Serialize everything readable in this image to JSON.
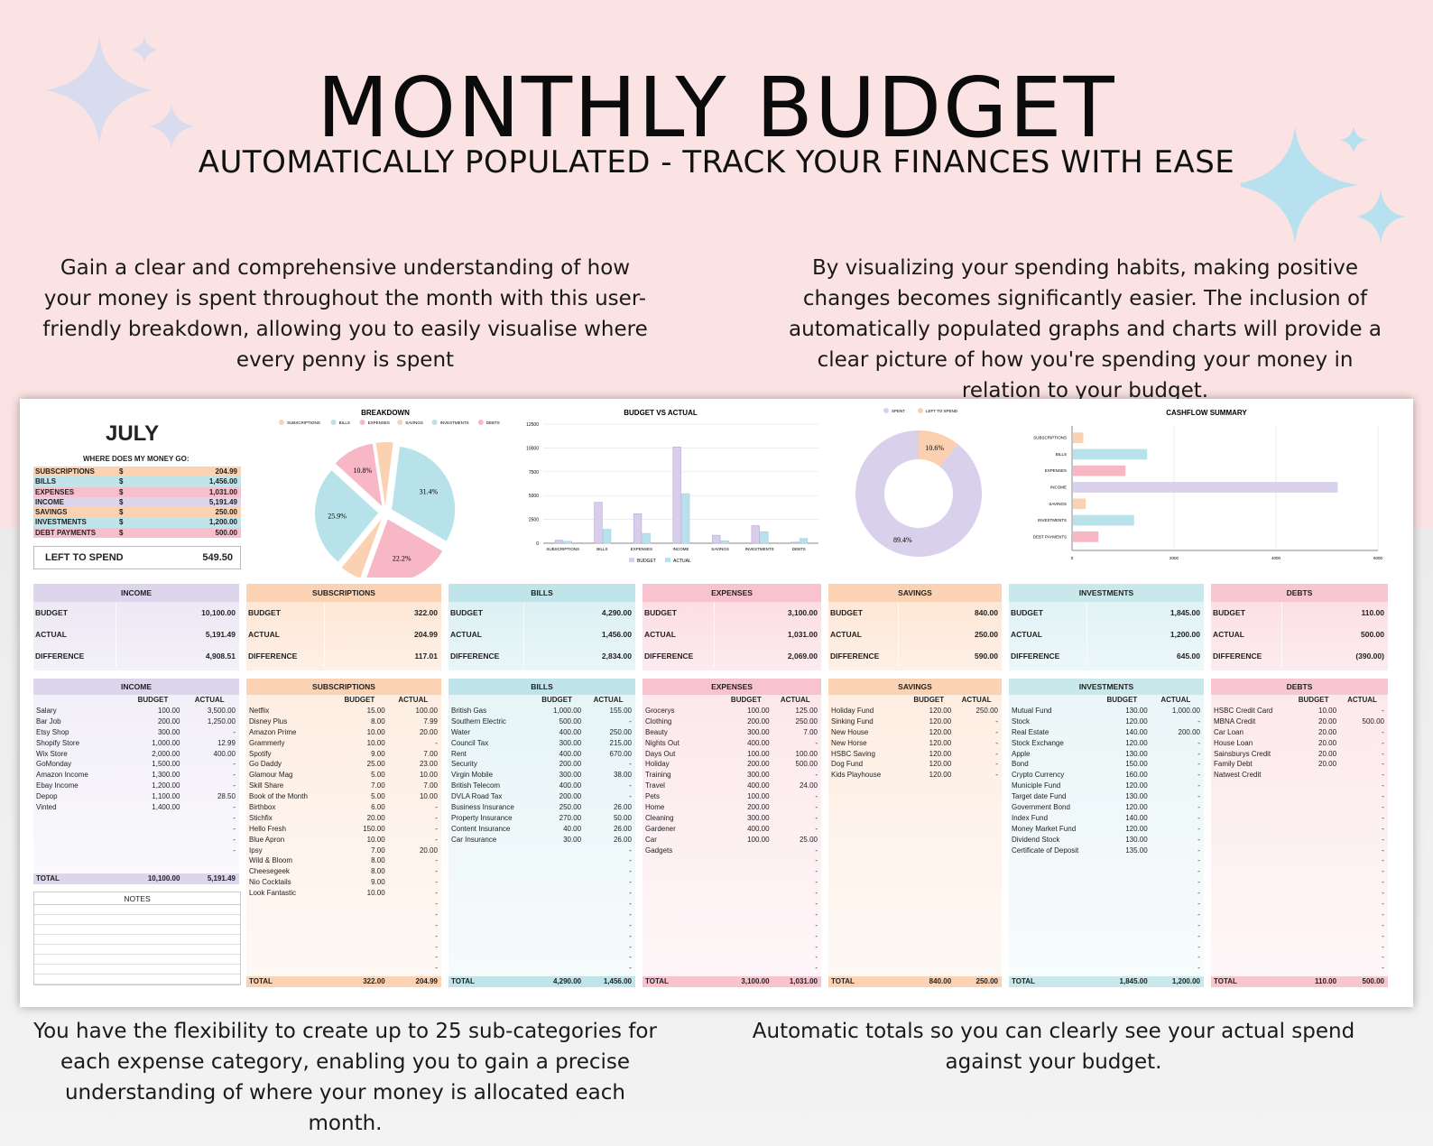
{
  "header": {
    "title": "MONTHLY BUDGET",
    "subtitle": "AUTOMATICALLY POPULATED - TRACK YOUR FINANCES WITH EASE"
  },
  "blurbs": {
    "top_left": "Gain a clear and comprehensive understanding of how your money is spent throughout the month with this user-friendly breakdown, allowing you to easily visualise where every penny is spent",
    "top_right": "By visualizing your spending habits, making positive changes becomes significantly easier. The inclusion of automatically populated graphs and charts will provide a clear picture of how you're spending your money in relation to your budget.",
    "bottom_left": "You have the flexibility to create up to 25 sub-categories for each expense category, enabling you to gain a precise understanding of where your money is allocated each month.",
    "bottom_right": "Automatic totals so you can clearly see your actual spend against your budget."
  },
  "colors": {
    "income": "#ddd5ec",
    "subscriptions": "#fbd3b4",
    "bills": "#bfe4ea",
    "expenses": "#f8c3ce",
    "savings": "#fbd3b4",
    "investments": "#c8e8ec",
    "debts": "#f8c6cf",
    "pie_subscriptions": "#fbd2b1",
    "pie_bills": "#b8e2ea",
    "pie_expenses": "#f7b7c5",
    "pie_savings": "#fbd2b1",
    "pie_investments": "#b8e2ea",
    "pie_debts": "#f7b7c5",
    "budget_bar": "#d8cdea",
    "actual_bar": "#b9e1ec",
    "spent": "#d9d1ec",
    "left_to_spend": "#fbd0b0"
  },
  "sheet": {
    "month": "JULY",
    "where_label": "WHERE DOES MY MONEY GO:",
    "summary": [
      {
        "label": "SUBSCRIPTIONS",
        "currency": "$",
        "value": "204.99",
        "color": "#fcd3b2"
      },
      {
        "label": "BILLS",
        "currency": "$",
        "value": "1,456.00",
        "color": "#bfe4ea"
      },
      {
        "label": "EXPENSES",
        "currency": "$",
        "value": "1,031.00",
        "color": "#f7bfcb"
      },
      {
        "label": "INCOME",
        "currency": "$",
        "value": "5,191.49",
        "color": "#ddd5ec"
      },
      {
        "label": "SAVINGS",
        "currency": "$",
        "value": "250.00",
        "color": "#fcd3b2"
      },
      {
        "label": "INVESTMENTS",
        "currency": "$",
        "value": "1,200.00",
        "color": "#bfe4ea"
      },
      {
        "label": "DEBT PAYMENTS",
        "currency": "$",
        "value": "500.00",
        "color": "#f7bfcb"
      }
    ],
    "left_to_spend_label": "LEFT TO SPEND",
    "left_to_spend_value": "549.50"
  },
  "chart_data": [
    {
      "type": "pie",
      "title": "BREAKDOWN",
      "legend": [
        "SUBSCRIPTIONS",
        "BILLS",
        "EXPENSES",
        "SAVINGS",
        "INVESTMENTS",
        "DEBTS"
      ],
      "labels": [
        "SUBSCRIPTIONS",
        "BILLS",
        "EXPENSES",
        "SAVINGS",
        "INVESTMENTS",
        "DEBTS"
      ],
      "values": [
        4.4,
        31.4,
        22.2,
        5.4,
        25.9,
        10.8
      ],
      "data_labels": [
        "",
        "31.4%",
        "22.2%",
        "",
        "25.9%",
        "10.8%"
      ]
    },
    {
      "type": "bar",
      "title": "BUDGET VS ACTUAL",
      "categories": [
        "SUBSCRIPTIONS",
        "BILLS",
        "EXPENSES",
        "INCOME",
        "SAVINGS",
        "INVESTMENTS",
        "DEBTS"
      ],
      "series": [
        {
          "name": "BUDGET",
          "values": [
            322,
            4290,
            3100,
            10100,
            840,
            1845,
            110
          ]
        },
        {
          "name": "ACTUAL",
          "values": [
            204.99,
            1456,
            1031,
            5191.49,
            250,
            1200,
            500
          ]
        }
      ],
      "yticks": [
        "0",
        "2500",
        "5000",
        "7500",
        "10000",
        "12500"
      ],
      "ylim": [
        0,
        12500
      ]
    },
    {
      "type": "pie",
      "subtype": "donut",
      "legend": [
        "SPENT",
        "LEFT TO SPEND"
      ],
      "labels": [
        "SPENT",
        "LEFT TO SPEND"
      ],
      "values": [
        89.4,
        10.6
      ],
      "data_labels": [
        "89.4%",
        "10.6%"
      ]
    },
    {
      "type": "bar",
      "orientation": "horizontal",
      "title": "CASHFLOW SUMMARY",
      "categories": [
        "SUBSCRIPTIONS",
        "BILLS",
        "EXPENSES",
        "INCOME",
        "SAVINGS",
        "INVESTMENTS",
        "DEBT PAYMENTS"
      ],
      "values": [
        204.99,
        1456,
        1031,
        5191.49,
        250,
        1200,
        500
      ],
      "xticks": [
        "0",
        "2000",
        "4000",
        "6000"
      ],
      "xlim": [
        0,
        6000
      ]
    }
  ],
  "summary_cards": [
    {
      "title": "INCOME",
      "budget": "10,100.00",
      "actual": "5,191.49",
      "difference": "4,908.51"
    },
    {
      "title": "SUBSCRIPTIONS",
      "budget": "322.00",
      "actual": "204.99",
      "difference": "117.01"
    },
    {
      "title": "BILLS",
      "budget": "4,290.00",
      "actual": "1,456.00",
      "difference": "2,834.00"
    },
    {
      "title": "EXPENSES",
      "budget": "3,100.00",
      "actual": "1,031.00",
      "difference": "2,069.00"
    },
    {
      "title": "SAVINGS",
      "budget": "840.00",
      "actual": "250.00",
      "difference": "590.00"
    },
    {
      "title": "INVESTMENTS",
      "budget": "1,845.00",
      "actual": "1,200.00",
      "difference": "645.00"
    },
    {
      "title": "DEBTS",
      "budget": "110.00",
      "actual": "500.00",
      "difference": "(390.00)"
    }
  ],
  "card_labels": {
    "budget": "BUDGET",
    "actual": "ACTUAL",
    "difference": "DIFFERENCE",
    "total": "TOTAL",
    "notes": "NOTES"
  },
  "details": [
    {
      "title": "INCOME",
      "total_budget": "10,100.00",
      "total_actual": "5,191.49",
      "rows": [
        [
          "Salary",
          "100.00",
          "3,500.00"
        ],
        [
          "Bar Job",
          "200.00",
          "1,250.00"
        ],
        [
          "Etsy Shop",
          "300.00",
          "-"
        ],
        [
          "Shopify Store",
          "1,000.00",
          "12.99"
        ],
        [
          "Wix Store",
          "2,000.00",
          "400.00"
        ],
        [
          "GoMonday",
          "1,500.00",
          "-"
        ],
        [
          "Amazon Income",
          "1,300.00",
          "-"
        ],
        [
          "Ebay Income",
          "1,200.00",
          "-"
        ],
        [
          "Depop",
          "1,100.00",
          "28.50"
        ],
        [
          "Vinted",
          "1,400.00",
          "-"
        ],
        [
          "",
          "",
          "-"
        ],
        [
          "",
          "",
          "-"
        ],
        [
          "",
          "",
          "-"
        ],
        [
          "",
          "",
          "-"
        ]
      ]
    },
    {
      "title": "SUBSCRIPTIONS",
      "total_budget": "322.00",
      "total_actual": "204.99",
      "rows": [
        [
          "Netflix",
          "15.00",
          "100.00"
        ],
        [
          "Disney Plus",
          "8.00",
          "7.99"
        ],
        [
          "Amazon Prime",
          "10.00",
          "20.00"
        ],
        [
          "Grammerly",
          "10.00",
          "-"
        ],
        [
          "Spotify",
          "9.00",
          "7.00"
        ],
        [
          "Go Daddy",
          "25.00",
          "23.00"
        ],
        [
          "Glamour Mag",
          "5.00",
          "10.00"
        ],
        [
          "Skill Share",
          "7.00",
          "7.00"
        ],
        [
          "Book of the Month",
          "5.00",
          "10.00"
        ],
        [
          "Birthbox",
          "6.00",
          "-"
        ],
        [
          "Stichfix",
          "20.00",
          "-"
        ],
        [
          "Hello Fresh",
          "150.00",
          "-"
        ],
        [
          "Blue Apron",
          "10.00",
          "-"
        ],
        [
          "Ipsy",
          "7.00",
          "20.00"
        ],
        [
          "Wild & Bloom",
          "8.00",
          "-"
        ],
        [
          "Cheesegeek",
          "8.00",
          "-"
        ],
        [
          "Nio Cocktails",
          "9.00",
          "-"
        ],
        [
          "Look Fantastic",
          "10.00",
          "-"
        ],
        [
          "",
          "",
          "-"
        ],
        [
          "",
          "",
          "-"
        ],
        [
          "",
          "",
          "-"
        ],
        [
          "",
          "",
          "-"
        ],
        [
          "",
          "",
          "-"
        ],
        [
          "",
          "",
          "-"
        ],
        [
          "",
          "",
          "-"
        ]
      ]
    },
    {
      "title": "BILLS",
      "total_budget": "4,290.00",
      "total_actual": "1,456.00",
      "rows": [
        [
          "British Gas",
          "1,000.00",
          "155.00"
        ],
        [
          "Southern Electric",
          "500.00",
          "-"
        ],
        [
          "Water",
          "400.00",
          "250.00"
        ],
        [
          "Council Tax",
          "300.00",
          "215.00"
        ],
        [
          "Rent",
          "400.00",
          "670.00"
        ],
        [
          "Security",
          "200.00",
          "-"
        ],
        [
          "Virgin Mobile",
          "300.00",
          "38.00"
        ],
        [
          "British Telecom",
          "400.00",
          "-"
        ],
        [
          "DVLA Road Tax",
          "200.00",
          "-"
        ],
        [
          "Business Insurance",
          "250.00",
          "26.00"
        ],
        [
          "Property Insurance",
          "270.00",
          "50.00"
        ],
        [
          "Content Insurance",
          "40.00",
          "26.00"
        ],
        [
          "Car Insurance",
          "30.00",
          "26.00"
        ],
        [
          "",
          "",
          "-"
        ],
        [
          "",
          "",
          "-"
        ],
        [
          "",
          "",
          "-"
        ],
        [
          "",
          "",
          "-"
        ],
        [
          "",
          "",
          "-"
        ],
        [
          "",
          "",
          "-"
        ],
        [
          "",
          "",
          "-"
        ],
        [
          "",
          "",
          "-"
        ],
        [
          "",
          "",
          "-"
        ],
        [
          "",
          "",
          "-"
        ],
        [
          "",
          "",
          "-"
        ],
        [
          "",
          "",
          "-"
        ]
      ]
    },
    {
      "title": "EXPENSES",
      "total_budget": "3,100.00",
      "total_actual": "1,031.00",
      "rows": [
        [
          "Grocerys",
          "100.00",
          "125.00"
        ],
        [
          "Clothing",
          "200.00",
          "250.00"
        ],
        [
          "Beauty",
          "300.00",
          "7.00"
        ],
        [
          "Nights Out",
          "400.00",
          "-"
        ],
        [
          "Days Out",
          "100.00",
          "100.00"
        ],
        [
          "Holiday",
          "200.00",
          "500.00"
        ],
        [
          "Training",
          "300.00",
          "-"
        ],
        [
          "Travel",
          "400.00",
          "24.00"
        ],
        [
          "Pets",
          "100.00",
          "-"
        ],
        [
          "Home",
          "200.00",
          "-"
        ],
        [
          "Cleaning",
          "300.00",
          "-"
        ],
        [
          "Gardener",
          "400.00",
          "-"
        ],
        [
          "Car",
          "100.00",
          "25.00"
        ],
        [
          "Gadgets",
          "",
          "-"
        ],
        [
          "",
          "",
          "-"
        ],
        [
          "",
          "",
          "-"
        ],
        [
          "",
          "",
          "-"
        ],
        [
          "",
          "",
          "-"
        ],
        [
          "",
          "",
          "-"
        ],
        [
          "",
          "",
          "-"
        ],
        [
          "",
          "",
          "-"
        ],
        [
          "",
          "",
          "-"
        ],
        [
          "",
          "",
          "-"
        ],
        [
          "",
          "",
          "-"
        ],
        [
          "",
          "",
          "-"
        ]
      ]
    },
    {
      "title": "SAVINGS",
      "total_budget": "840.00",
      "total_actual": "250.00",
      "rows": [
        [
          "Holiday Fund",
          "120.00",
          "250.00"
        ],
        [
          "Sinking Fund",
          "120.00",
          "-"
        ],
        [
          "New House",
          "120.00",
          "-"
        ],
        [
          "New Horse",
          "120.00",
          "-"
        ],
        [
          "HSBC Saving",
          "120.00",
          "-"
        ],
        [
          "Dog Fund",
          "120.00",
          "-"
        ],
        [
          "Kids Playhouse",
          "120.00",
          "-"
        ]
      ]
    },
    {
      "title": "INVESTMENTS",
      "total_budget": "1,845.00",
      "total_actual": "1,200.00",
      "rows": [
        [
          "Mutual Fund",
          "130.00",
          "1,000.00"
        ],
        [
          "Stock",
          "120.00",
          "-"
        ],
        [
          "Real Estate",
          "140.00",
          "200.00"
        ],
        [
          "Stock Exchange",
          "120.00",
          "-"
        ],
        [
          "Apple",
          "130.00",
          "-"
        ],
        [
          "Bond",
          "150.00",
          "-"
        ],
        [
          "Crypto Currency",
          "160.00",
          "-"
        ],
        [
          "Municiple Fund",
          "120.00",
          "-"
        ],
        [
          "Target date Fund",
          "130.00",
          "-"
        ],
        [
          "Government Bond",
          "120.00",
          "-"
        ],
        [
          "Index Fund",
          "140.00",
          "-"
        ],
        [
          "Money Market Fund",
          "120.00",
          "-"
        ],
        [
          "Dividend Stock",
          "130.00",
          "-"
        ],
        [
          "Certificate of Deposit",
          "135.00",
          "-"
        ],
        [
          "",
          "",
          "-"
        ],
        [
          "",
          "",
          "-"
        ],
        [
          "",
          "",
          "-"
        ],
        [
          "",
          "",
          "-"
        ],
        [
          "",
          "",
          "-"
        ],
        [
          "",
          "",
          "-"
        ],
        [
          "",
          "",
          "-"
        ],
        [
          "",
          "",
          "-"
        ],
        [
          "",
          "",
          "-"
        ],
        [
          "",
          "",
          "-"
        ],
        [
          "",
          "",
          "-"
        ]
      ]
    },
    {
      "title": "DEBTS",
      "total_budget": "110.00",
      "total_actual": "500.00",
      "rows": [
        [
          "HSBC Credit Card",
          "10.00",
          "-"
        ],
        [
          "MBNA Credit",
          "20.00",
          "500.00"
        ],
        [
          "Car Loan",
          "20.00",
          "-"
        ],
        [
          "House Loan",
          "20.00",
          "-"
        ],
        [
          "Sainsburys Credit",
          "20.00",
          "-"
        ],
        [
          "Family Debt",
          "20.00",
          "-"
        ],
        [
          "Natwest Credit",
          "",
          "-"
        ],
        [
          "",
          "",
          "-"
        ],
        [
          "",
          "",
          "-"
        ],
        [
          "",
          "",
          "-"
        ],
        [
          "",
          "",
          "-"
        ],
        [
          "",
          "",
          "-"
        ],
        [
          "",
          "",
          "-"
        ],
        [
          "",
          "",
          "-"
        ],
        [
          "",
          "",
          "-"
        ],
        [
          "",
          "",
          "-"
        ],
        [
          "",
          "",
          "-"
        ],
        [
          "",
          "",
          "-"
        ],
        [
          "",
          "",
          "-"
        ],
        [
          "",
          "",
          "-"
        ],
        [
          "",
          "",
          "-"
        ],
        [
          "",
          "",
          "-"
        ],
        [
          "",
          "",
          "-"
        ],
        [
          "",
          "",
          "-"
        ],
        [
          "",
          "",
          "-"
        ]
      ]
    }
  ]
}
